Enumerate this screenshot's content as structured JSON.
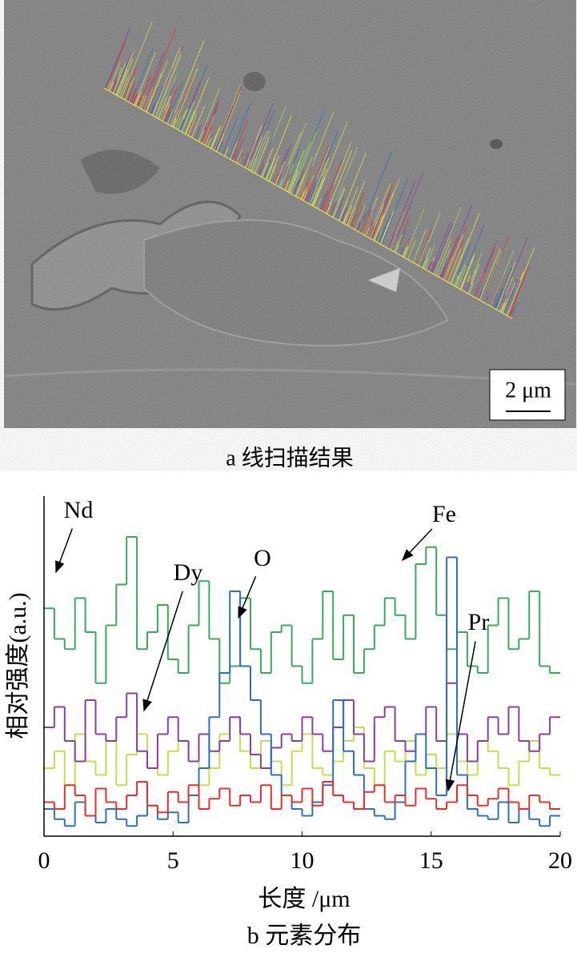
{
  "figure": {
    "scale_bar": "2 μm",
    "caption_a": "a 线扫描结果",
    "caption_b": "b 元素分布"
  },
  "chart_data": {
    "type": "step",
    "x_label": "长度 /μm",
    "y_label": "相对强度(a.u.)",
    "xlim": [
      0,
      20
    ],
    "xticks": [
      0,
      5,
      10,
      15,
      20
    ],
    "ylim": [
      0,
      100
    ],
    "x": [
      0,
      0.4,
      0.8,
      1.2,
      1.6,
      2,
      2.4,
      2.8,
      3.2,
      3.6,
      4,
      4.4,
      4.8,
      5.2,
      5.6,
      6,
      6.4,
      6.8,
      7.2,
      7.6,
      8,
      8.4,
      8.8,
      9.2,
      9.6,
      10,
      10.4,
      10.8,
      11.2,
      11.6,
      12,
      12.4,
      12.8,
      13.2,
      13.6,
      14,
      14.4,
      14.8,
      15.2,
      15.6,
      16,
      16.4,
      16.8,
      17.2,
      17.6,
      18,
      18.4,
      18.8,
      19.2,
      19.6
    ],
    "series": [
      {
        "name": "Fe",
        "color": "#3aa95a",
        "values": [
          67,
          58,
          55,
          70,
          60,
          45,
          62,
          74,
          88,
          55,
          60,
          68,
          52,
          48,
          62,
          75,
          58,
          45,
          50,
          70,
          55,
          48,
          60,
          62,
          50,
          45,
          58,
          72,
          52,
          65,
          48,
          55,
          62,
          70,
          65,
          58,
          80,
          85,
          65,
          55,
          60,
          50,
          48,
          62,
          70,
          55,
          58,
          72,
          50,
          48
        ]
      },
      {
        "name": "Nd",
        "color": "#c8dc50",
        "values": [
          20,
          25,
          15,
          30,
          22,
          18,
          28,
          15,
          24,
          30,
          20,
          18,
          25,
          28,
          22,
          15,
          20,
          30,
          35,
          25,
          20,
          28,
          22,
          15,
          25,
          30,
          20,
          18,
          22,
          28,
          32,
          20,
          15,
          25,
          22,
          28,
          18,
          24,
          20,
          30,
          22,
          18,
          28,
          25,
          20,
          15,
          22,
          28,
          20,
          18
        ]
      },
      {
        "name": "Dy",
        "color": "#8a3fa0",
        "values": [
          32,
          38,
          28,
          22,
          40,
          30,
          28,
          35,
          42,
          25,
          20,
          30,
          35,
          28,
          22,
          30,
          25,
          28,
          35,
          30,
          24,
          20,
          26,
          30,
          28,
          35,
          30,
          25,
          32,
          40,
          30,
          22,
          35,
          38,
          28,
          25,
          30,
          38,
          28,
          45,
          30,
          22,
          28,
          35,
          30,
          38,
          28,
          25,
          30,
          35
        ]
      },
      {
        "name": "O",
        "color": "#2f6fc0",
        "values": [
          8,
          5,
          3,
          10,
          6,
          4,
          8,
          5,
          3,
          6,
          9,
          5,
          7,
          4,
          12,
          20,
          35,
          48,
          72,
          50,
          40,
          30,
          18,
          12,
          8,
          6,
          10,
          15,
          40,
          25,
          18,
          8,
          6,
          5,
          10,
          22,
          30,
          20,
          12,
          82,
          18,
          8,
          6,
          5,
          10,
          4,
          8,
          5,
          3,
          6
        ]
      },
      {
        "name": "Pr",
        "color": "#e8302a",
        "values": [
          10,
          8,
          15,
          12,
          6,
          14,
          10,
          8,
          12,
          16,
          9,
          7,
          13,
          10,
          15,
          8,
          11,
          14,
          9,
          12,
          10,
          15,
          8,
          12,
          10,
          14,
          9,
          16,
          12,
          10,
          8,
          13,
          15,
          10,
          12,
          9,
          14,
          11,
          8,
          10,
          15,
          12,
          9,
          11,
          14,
          10,
          8,
          12,
          10,
          8
        ]
      }
    ]
  }
}
